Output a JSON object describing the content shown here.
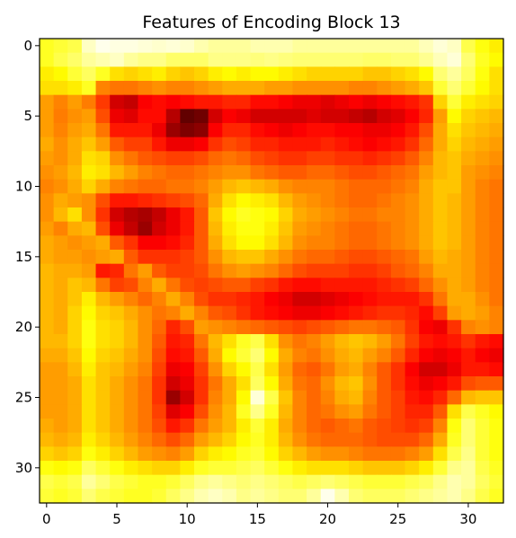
{
  "chart_data": {
    "type": "heatmap",
    "title": "Features of Encoding Block 13",
    "xlabel": "",
    "ylabel": "",
    "colormap": "hot",
    "value_range": [
      0,
      1
    ],
    "grid": false,
    "x_ticks": [
      0,
      5,
      10,
      15,
      20,
      25,
      30
    ],
    "y_ticks": [
      0,
      5,
      10,
      15,
      20,
      25,
      30
    ],
    "x_tick_labels": [
      "0",
      "5",
      "10",
      "15",
      "20",
      "25",
      "30"
    ],
    "y_tick_labels": [
      "0",
      "5",
      "10",
      "15",
      "20",
      "25",
      "30"
    ],
    "rows": 33,
    "cols": 33,
    "values": [
      [
        0.78,
        0.8,
        0.82,
        0.94,
        0.98,
        0.97,
        0.97,
        0.96,
        0.95,
        0.96,
        0.95,
        0.92,
        0.9,
        0.9,
        0.9,
        0.92,
        0.92,
        0.92,
        0.9,
        0.9,
        0.9,
        0.9,
        0.9,
        0.9,
        0.9,
        0.9,
        0.9,
        0.93,
        0.96,
        0.94,
        0.82,
        0.76,
        0.72
      ],
      [
        0.78,
        0.82,
        0.85,
        0.9,
        0.92,
        0.94,
        0.9,
        0.88,
        0.88,
        0.85,
        0.85,
        0.85,
        0.88,
        0.88,
        0.88,
        0.87,
        0.88,
        0.87,
        0.86,
        0.86,
        0.86,
        0.86,
        0.86,
        0.85,
        0.85,
        0.86,
        0.86,
        0.89,
        0.93,
        0.96,
        0.86,
        0.78,
        0.74
      ],
      [
        0.72,
        0.74,
        0.8,
        0.84,
        0.78,
        0.7,
        0.68,
        0.7,
        0.72,
        0.68,
        0.66,
        0.68,
        0.72,
        0.74,
        0.72,
        0.74,
        0.74,
        0.72,
        0.7,
        0.68,
        0.68,
        0.68,
        0.68,
        0.66,
        0.66,
        0.68,
        0.7,
        0.74,
        0.86,
        0.9,
        0.84,
        0.76,
        0.7
      ],
      [
        0.7,
        0.7,
        0.72,
        0.78,
        0.56,
        0.54,
        0.54,
        0.56,
        0.58,
        0.56,
        0.56,
        0.58,
        0.6,
        0.62,
        0.62,
        0.62,
        0.6,
        0.6,
        0.58,
        0.58,
        0.58,
        0.58,
        0.56,
        0.56,
        0.58,
        0.6,
        0.62,
        0.66,
        0.8,
        0.86,
        0.8,
        0.74,
        0.7
      ],
      [
        0.6,
        0.56,
        0.6,
        0.55,
        0.45,
        0.3,
        0.28,
        0.36,
        0.38,
        0.36,
        0.38,
        0.4,
        0.4,
        0.42,
        0.42,
        0.38,
        0.38,
        0.36,
        0.34,
        0.34,
        0.32,
        0.34,
        0.36,
        0.34,
        0.36,
        0.38,
        0.4,
        0.44,
        0.68,
        0.8,
        0.72,
        0.7,
        0.68
      ],
      [
        0.6,
        0.55,
        0.58,
        0.6,
        0.48,
        0.34,
        0.32,
        0.38,
        0.38,
        0.26,
        0.14,
        0.16,
        0.3,
        0.36,
        0.34,
        0.3,
        0.3,
        0.3,
        0.3,
        0.32,
        0.3,
        0.3,
        0.28,
        0.26,
        0.3,
        0.32,
        0.36,
        0.42,
        0.6,
        0.74,
        0.68,
        0.66,
        0.64
      ],
      [
        0.6,
        0.56,
        0.6,
        0.62,
        0.54,
        0.4,
        0.4,
        0.4,
        0.34,
        0.22,
        0.18,
        0.2,
        0.36,
        0.42,
        0.42,
        0.38,
        0.36,
        0.34,
        0.36,
        0.38,
        0.38,
        0.36,
        0.36,
        0.34,
        0.34,
        0.36,
        0.4,
        0.48,
        0.62,
        0.7,
        0.66,
        0.64,
        0.62
      ],
      [
        0.62,
        0.58,
        0.62,
        0.66,
        0.6,
        0.5,
        0.46,
        0.46,
        0.4,
        0.34,
        0.34,
        0.36,
        0.44,
        0.48,
        0.46,
        0.42,
        0.42,
        0.4,
        0.4,
        0.4,
        0.42,
        0.4,
        0.38,
        0.36,
        0.38,
        0.4,
        0.44,
        0.52,
        0.62,
        0.68,
        0.64,
        0.62,
        0.6
      ],
      [
        0.6,
        0.58,
        0.62,
        0.7,
        0.68,
        0.58,
        0.54,
        0.5,
        0.48,
        0.46,
        0.46,
        0.48,
        0.52,
        0.54,
        0.52,
        0.48,
        0.46,
        0.44,
        0.44,
        0.46,
        0.46,
        0.44,
        0.44,
        0.42,
        0.44,
        0.46,
        0.5,
        0.56,
        0.64,
        0.66,
        0.62,
        0.6,
        0.58
      ],
      [
        0.58,
        0.6,
        0.64,
        0.72,
        0.7,
        0.64,
        0.6,
        0.56,
        0.54,
        0.52,
        0.52,
        0.54,
        0.56,
        0.58,
        0.58,
        0.54,
        0.52,
        0.5,
        0.5,
        0.52,
        0.52,
        0.5,
        0.48,
        0.48,
        0.5,
        0.52,
        0.54,
        0.6,
        0.64,
        0.66,
        0.6,
        0.58,
        0.56
      ],
      [
        0.56,
        0.58,
        0.62,
        0.68,
        0.62,
        0.56,
        0.54,
        0.52,
        0.52,
        0.54,
        0.54,
        0.56,
        0.6,
        0.64,
        0.66,
        0.64,
        0.62,
        0.58,
        0.56,
        0.56,
        0.56,
        0.54,
        0.52,
        0.52,
        0.52,
        0.54,
        0.56,
        0.62,
        0.66,
        0.66,
        0.6,
        0.56,
        0.54
      ],
      [
        0.58,
        0.62,
        0.6,
        0.58,
        0.48,
        0.4,
        0.4,
        0.42,
        0.44,
        0.46,
        0.48,
        0.52,
        0.62,
        0.7,
        0.74,
        0.72,
        0.7,
        0.64,
        0.6,
        0.58,
        0.56,
        0.54,
        0.52,
        0.52,
        0.54,
        0.56,
        0.58,
        0.62,
        0.66,
        0.64,
        0.6,
        0.56,
        0.54
      ],
      [
        0.58,
        0.64,
        0.7,
        0.58,
        0.44,
        0.3,
        0.26,
        0.24,
        0.28,
        0.34,
        0.4,
        0.5,
        0.66,
        0.74,
        0.78,
        0.76,
        0.74,
        0.68,
        0.62,
        0.6,
        0.58,
        0.56,
        0.54,
        0.54,
        0.56,
        0.56,
        0.58,
        0.62,
        0.66,
        0.64,
        0.6,
        0.56,
        0.54
      ],
      [
        0.6,
        0.56,
        0.62,
        0.64,
        0.48,
        0.34,
        0.28,
        0.22,
        0.3,
        0.34,
        0.4,
        0.5,
        0.64,
        0.72,
        0.76,
        0.76,
        0.72,
        0.66,
        0.6,
        0.58,
        0.56,
        0.54,
        0.52,
        0.52,
        0.54,
        0.56,
        0.58,
        0.62,
        0.66,
        0.64,
        0.6,
        0.56,
        0.54
      ],
      [
        0.62,
        0.6,
        0.58,
        0.6,
        0.62,
        0.5,
        0.44,
        0.36,
        0.36,
        0.38,
        0.42,
        0.5,
        0.62,
        0.7,
        0.74,
        0.74,
        0.7,
        0.64,
        0.58,
        0.56,
        0.56,
        0.54,
        0.52,
        0.52,
        0.54,
        0.56,
        0.58,
        0.62,
        0.66,
        0.64,
        0.6,
        0.56,
        0.54
      ],
      [
        0.62,
        0.6,
        0.6,
        0.58,
        0.6,
        0.62,
        0.5,
        0.44,
        0.44,
        0.44,
        0.46,
        0.5,
        0.58,
        0.64,
        0.66,
        0.66,
        0.62,
        0.58,
        0.54,
        0.52,
        0.52,
        0.5,
        0.48,
        0.48,
        0.5,
        0.52,
        0.54,
        0.6,
        0.64,
        0.62,
        0.6,
        0.56,
        0.54
      ],
      [
        0.64,
        0.62,
        0.62,
        0.6,
        0.4,
        0.42,
        0.54,
        0.6,
        0.5,
        0.46,
        0.46,
        0.48,
        0.54,
        0.58,
        0.6,
        0.58,
        0.56,
        0.52,
        0.48,
        0.46,
        0.46,
        0.46,
        0.44,
        0.44,
        0.46,
        0.5,
        0.52,
        0.56,
        0.62,
        0.62,
        0.6,
        0.56,
        0.54
      ],
      [
        0.64,
        0.62,
        0.66,
        0.64,
        0.54,
        0.46,
        0.48,
        0.56,
        0.62,
        0.54,
        0.48,
        0.46,
        0.48,
        0.5,
        0.5,
        0.46,
        0.44,
        0.4,
        0.38,
        0.38,
        0.4,
        0.4,
        0.4,
        0.4,
        0.42,
        0.44,
        0.46,
        0.52,
        0.58,
        0.62,
        0.6,
        0.56,
        0.54
      ],
      [
        0.64,
        0.62,
        0.66,
        0.72,
        0.64,
        0.6,
        0.56,
        0.52,
        0.56,
        0.62,
        0.56,
        0.48,
        0.44,
        0.44,
        0.42,
        0.4,
        0.36,
        0.34,
        0.3,
        0.3,
        0.32,
        0.34,
        0.36,
        0.38,
        0.4,
        0.4,
        0.4,
        0.44,
        0.54,
        0.62,
        0.62,
        0.58,
        0.54
      ],
      [
        0.64,
        0.62,
        0.68,
        0.74,
        0.68,
        0.66,
        0.62,
        0.58,
        0.54,
        0.56,
        0.62,
        0.56,
        0.5,
        0.48,
        0.44,
        0.4,
        0.38,
        0.36,
        0.34,
        0.34,
        0.36,
        0.38,
        0.4,
        0.42,
        0.44,
        0.44,
        0.42,
        0.38,
        0.46,
        0.6,
        0.62,
        0.6,
        0.56
      ],
      [
        0.64,
        0.62,
        0.68,
        0.76,
        0.7,
        0.68,
        0.64,
        0.58,
        0.52,
        0.42,
        0.48,
        0.6,
        0.58,
        0.56,
        0.54,
        0.52,
        0.5,
        0.48,
        0.46,
        0.48,
        0.5,
        0.52,
        0.54,
        0.54,
        0.52,
        0.5,
        0.44,
        0.36,
        0.34,
        0.44,
        0.56,
        0.58,
        0.56
      ],
      [
        0.64,
        0.64,
        0.68,
        0.76,
        0.7,
        0.68,
        0.64,
        0.58,
        0.5,
        0.4,
        0.42,
        0.54,
        0.64,
        0.7,
        0.78,
        0.82,
        0.7,
        0.58,
        0.54,
        0.56,
        0.6,
        0.64,
        0.66,
        0.64,
        0.6,
        0.54,
        0.46,
        0.4,
        0.38,
        0.4,
        0.44,
        0.4,
        0.38
      ],
      [
        0.62,
        0.62,
        0.66,
        0.74,
        0.68,
        0.66,
        0.62,
        0.58,
        0.48,
        0.38,
        0.4,
        0.5,
        0.62,
        0.74,
        0.8,
        0.86,
        0.74,
        0.62,
        0.56,
        0.54,
        0.58,
        0.62,
        0.64,
        0.6,
        0.56,
        0.5,
        0.42,
        0.36,
        0.34,
        0.36,
        0.4,
        0.36,
        0.34
      ],
      [
        0.6,
        0.6,
        0.64,
        0.72,
        0.66,
        0.64,
        0.6,
        0.56,
        0.46,
        0.34,
        0.36,
        0.46,
        0.58,
        0.68,
        0.74,
        0.82,
        0.7,
        0.6,
        0.52,
        0.5,
        0.54,
        0.6,
        0.62,
        0.56,
        0.5,
        0.44,
        0.36,
        0.3,
        0.3,
        0.34,
        0.4,
        0.4,
        0.38
      ],
      [
        0.6,
        0.6,
        0.62,
        0.7,
        0.66,
        0.62,
        0.58,
        0.54,
        0.44,
        0.3,
        0.34,
        0.44,
        0.54,
        0.62,
        0.7,
        0.84,
        0.74,
        0.62,
        0.54,
        0.52,
        0.58,
        0.64,
        0.66,
        0.58,
        0.5,
        0.44,
        0.38,
        0.34,
        0.36,
        0.4,
        0.48,
        0.5,
        0.5
      ],
      [
        0.6,
        0.6,
        0.62,
        0.7,
        0.66,
        0.62,
        0.58,
        0.54,
        0.44,
        0.22,
        0.3,
        0.44,
        0.56,
        0.62,
        0.74,
        0.96,
        0.82,
        0.66,
        0.56,
        0.52,
        0.56,
        0.62,
        0.64,
        0.56,
        0.5,
        0.46,
        0.4,
        0.38,
        0.42,
        0.52,
        0.64,
        0.66,
        0.66
      ],
      [
        0.6,
        0.6,
        0.62,
        0.7,
        0.66,
        0.62,
        0.58,
        0.54,
        0.46,
        0.32,
        0.36,
        0.48,
        0.58,
        0.64,
        0.78,
        0.88,
        0.78,
        0.64,
        0.56,
        0.52,
        0.54,
        0.58,
        0.6,
        0.54,
        0.5,
        0.46,
        0.42,
        0.42,
        0.5,
        0.7,
        0.82,
        0.78,
        0.74
      ],
      [
        0.62,
        0.6,
        0.62,
        0.7,
        0.66,
        0.62,
        0.58,
        0.54,
        0.48,
        0.4,
        0.44,
        0.54,
        0.6,
        0.64,
        0.72,
        0.8,
        0.72,
        0.62,
        0.56,
        0.52,
        0.5,
        0.52,
        0.54,
        0.5,
        0.48,
        0.46,
        0.44,
        0.46,
        0.56,
        0.76,
        0.86,
        0.8,
        0.76
      ],
      [
        0.64,
        0.62,
        0.64,
        0.72,
        0.68,
        0.64,
        0.6,
        0.56,
        0.52,
        0.48,
        0.52,
        0.6,
        0.64,
        0.68,
        0.74,
        0.78,
        0.72,
        0.64,
        0.58,
        0.54,
        0.52,
        0.52,
        0.52,
        0.5,
        0.48,
        0.48,
        0.48,
        0.52,
        0.62,
        0.78,
        0.86,
        0.8,
        0.76
      ],
      [
        0.68,
        0.66,
        0.68,
        0.76,
        0.72,
        0.68,
        0.64,
        0.6,
        0.58,
        0.56,
        0.6,
        0.68,
        0.72,
        0.74,
        0.78,
        0.8,
        0.74,
        0.68,
        0.64,
        0.6,
        0.58,
        0.58,
        0.56,
        0.54,
        0.54,
        0.54,
        0.56,
        0.6,
        0.7,
        0.82,
        0.88,
        0.8,
        0.76
      ],
      [
        0.76,
        0.74,
        0.76,
        0.84,
        0.8,
        0.76,
        0.72,
        0.7,
        0.68,
        0.68,
        0.72,
        0.78,
        0.8,
        0.8,
        0.82,
        0.84,
        0.8,
        0.76,
        0.72,
        0.7,
        0.7,
        0.7,
        0.68,
        0.66,
        0.66,
        0.66,
        0.68,
        0.72,
        0.8,
        0.88,
        0.9,
        0.82,
        0.78
      ],
      [
        0.82,
        0.8,
        0.82,
        0.9,
        0.86,
        0.82,
        0.8,
        0.78,
        0.78,
        0.8,
        0.84,
        0.88,
        0.9,
        0.88,
        0.86,
        0.88,
        0.86,
        0.84,
        0.82,
        0.84,
        0.86,
        0.84,
        0.82,
        0.8,
        0.8,
        0.8,
        0.82,
        0.84,
        0.88,
        0.92,
        0.9,
        0.84,
        0.8
      ],
      [
        0.8,
        0.78,
        0.8,
        0.86,
        0.82,
        0.8,
        0.78,
        0.78,
        0.8,
        0.84,
        0.88,
        0.92,
        0.94,
        0.92,
        0.88,
        0.9,
        0.88,
        0.86,
        0.86,
        0.9,
        0.98,
        0.92,
        0.86,
        0.84,
        0.84,
        0.84,
        0.86,
        0.88,
        0.9,
        0.92,
        0.88,
        0.82,
        0.78
      ]
    ]
  }
}
